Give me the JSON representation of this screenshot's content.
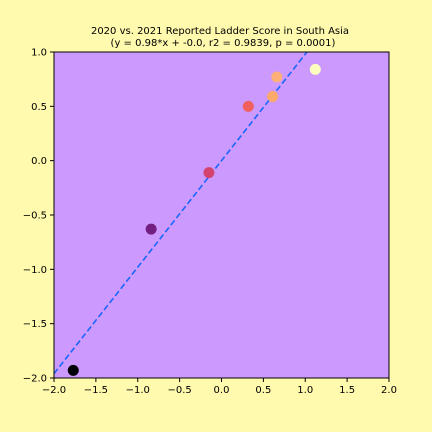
{
  "colors": {
    "figure_background": "#fffaae",
    "plot_background": "#cc99ff",
    "fit_line": "#1a66ff"
  },
  "chart_data": {
    "type": "scatter",
    "title": "2020 vs. 2021 Reported Ladder Score in South Asia",
    "subtitle": "(y = 0.98*x + -0.0, r2 = 0.9839, p = 0.0001)",
    "xlabel": "",
    "ylabel": "",
    "xlim": [
      -2.0,
      2.0
    ],
    "ylim": [
      -2.0,
      1.0
    ],
    "x_ticks": [
      "−2.0",
      "−1.5",
      "−1.0",
      "−0.5",
      "0.0",
      "0.5",
      "1.0",
      "1.5",
      "2.0"
    ],
    "y_ticks": [
      "−2.0",
      "−1.5",
      "−1.0",
      "−0.5",
      "0.0",
      "0.5",
      "1.0"
    ],
    "grid": false,
    "fit_line": {
      "slope": 0.98,
      "intercept": 0.0,
      "style": "dashed"
    },
    "points": [
      {
        "x": -1.77,
        "y": -1.93,
        "color": "#000004"
      },
      {
        "x": -0.84,
        "y": -0.63,
        "color": "#721f81"
      },
      {
        "x": -0.15,
        "y": -0.11,
        "color": "#d3436e"
      },
      {
        "x": 0.32,
        "y": 0.5,
        "color": "#f1605d"
      },
      {
        "x": 0.61,
        "y": 0.59,
        "color": "#fca96a"
      },
      {
        "x": 0.66,
        "y": 0.77,
        "color": "#feb078"
      },
      {
        "x": 1.12,
        "y": 0.84,
        "color": "#fcfdbf"
      }
    ]
  }
}
